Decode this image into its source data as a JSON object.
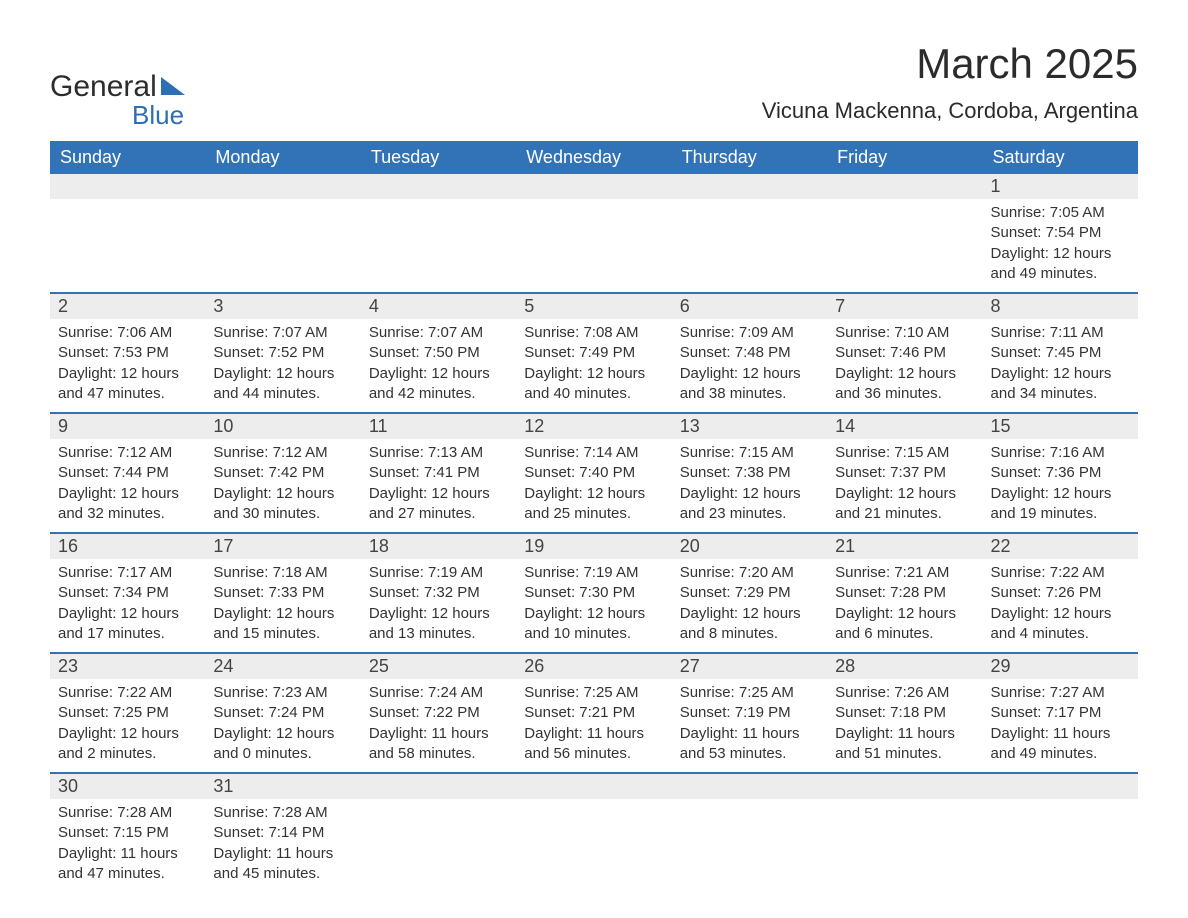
{
  "logo": {
    "text1": "General",
    "text2": "Blue",
    "color_text1": "#2c2c2c",
    "color_text2": "#2e6fb4"
  },
  "title": "March 2025",
  "subtitle": "Vicuna Mackenna, Cordoba, Argentina",
  "colors": {
    "header_bg": "#3273b8",
    "header_text": "#ffffff",
    "daynum_bg": "#ededed",
    "row_separator": "#3273b8",
    "body_text": "#333333",
    "background": "#ffffff"
  },
  "typography": {
    "title_fontsize": 42,
    "subtitle_fontsize": 22,
    "header_fontsize": 18,
    "daynum_fontsize": 18,
    "body_fontsize": 15
  },
  "calendar": {
    "type": "table",
    "columns": [
      "Sunday",
      "Monday",
      "Tuesday",
      "Wednesday",
      "Thursday",
      "Friday",
      "Saturday"
    ],
    "first_day_column_index": 6,
    "days": [
      {
        "n": 1,
        "sunrise": "7:05 AM",
        "sunset": "7:54 PM",
        "daylight": "12 hours and 49 minutes."
      },
      {
        "n": 2,
        "sunrise": "7:06 AM",
        "sunset": "7:53 PM",
        "daylight": "12 hours and 47 minutes."
      },
      {
        "n": 3,
        "sunrise": "7:07 AM",
        "sunset": "7:52 PM",
        "daylight": "12 hours and 44 minutes."
      },
      {
        "n": 4,
        "sunrise": "7:07 AM",
        "sunset": "7:50 PM",
        "daylight": "12 hours and 42 minutes."
      },
      {
        "n": 5,
        "sunrise": "7:08 AM",
        "sunset": "7:49 PM",
        "daylight": "12 hours and 40 minutes."
      },
      {
        "n": 6,
        "sunrise": "7:09 AM",
        "sunset": "7:48 PM",
        "daylight": "12 hours and 38 minutes."
      },
      {
        "n": 7,
        "sunrise": "7:10 AM",
        "sunset": "7:46 PM",
        "daylight": "12 hours and 36 minutes."
      },
      {
        "n": 8,
        "sunrise": "7:11 AM",
        "sunset": "7:45 PM",
        "daylight": "12 hours and 34 minutes."
      },
      {
        "n": 9,
        "sunrise": "7:12 AM",
        "sunset": "7:44 PM",
        "daylight": "12 hours and 32 minutes."
      },
      {
        "n": 10,
        "sunrise": "7:12 AM",
        "sunset": "7:42 PM",
        "daylight": "12 hours and 30 minutes."
      },
      {
        "n": 11,
        "sunrise": "7:13 AM",
        "sunset": "7:41 PM",
        "daylight": "12 hours and 27 minutes."
      },
      {
        "n": 12,
        "sunrise": "7:14 AM",
        "sunset": "7:40 PM",
        "daylight": "12 hours and 25 minutes."
      },
      {
        "n": 13,
        "sunrise": "7:15 AM",
        "sunset": "7:38 PM",
        "daylight": "12 hours and 23 minutes."
      },
      {
        "n": 14,
        "sunrise": "7:15 AM",
        "sunset": "7:37 PM",
        "daylight": "12 hours and 21 minutes."
      },
      {
        "n": 15,
        "sunrise": "7:16 AM",
        "sunset": "7:36 PM",
        "daylight": "12 hours and 19 minutes."
      },
      {
        "n": 16,
        "sunrise": "7:17 AM",
        "sunset": "7:34 PM",
        "daylight": "12 hours and 17 minutes."
      },
      {
        "n": 17,
        "sunrise": "7:18 AM",
        "sunset": "7:33 PM",
        "daylight": "12 hours and 15 minutes."
      },
      {
        "n": 18,
        "sunrise": "7:19 AM",
        "sunset": "7:32 PM",
        "daylight": "12 hours and 13 minutes."
      },
      {
        "n": 19,
        "sunrise": "7:19 AM",
        "sunset": "7:30 PM",
        "daylight": "12 hours and 10 minutes."
      },
      {
        "n": 20,
        "sunrise": "7:20 AM",
        "sunset": "7:29 PM",
        "daylight": "12 hours and 8 minutes."
      },
      {
        "n": 21,
        "sunrise": "7:21 AM",
        "sunset": "7:28 PM",
        "daylight": "12 hours and 6 minutes."
      },
      {
        "n": 22,
        "sunrise": "7:22 AM",
        "sunset": "7:26 PM",
        "daylight": "12 hours and 4 minutes."
      },
      {
        "n": 23,
        "sunrise": "7:22 AM",
        "sunset": "7:25 PM",
        "daylight": "12 hours and 2 minutes."
      },
      {
        "n": 24,
        "sunrise": "7:23 AM",
        "sunset": "7:24 PM",
        "daylight": "12 hours and 0 minutes."
      },
      {
        "n": 25,
        "sunrise": "7:24 AM",
        "sunset": "7:22 PM",
        "daylight": "11 hours and 58 minutes."
      },
      {
        "n": 26,
        "sunrise": "7:25 AM",
        "sunset": "7:21 PM",
        "daylight": "11 hours and 56 minutes."
      },
      {
        "n": 27,
        "sunrise": "7:25 AM",
        "sunset": "7:19 PM",
        "daylight": "11 hours and 53 minutes."
      },
      {
        "n": 28,
        "sunrise": "7:26 AM",
        "sunset": "7:18 PM",
        "daylight": "11 hours and 51 minutes."
      },
      {
        "n": 29,
        "sunrise": "7:27 AM",
        "sunset": "7:17 PM",
        "daylight": "11 hours and 49 minutes."
      },
      {
        "n": 30,
        "sunrise": "7:28 AM",
        "sunset": "7:15 PM",
        "daylight": "11 hours and 47 minutes."
      },
      {
        "n": 31,
        "sunrise": "7:28 AM",
        "sunset": "7:14 PM",
        "daylight": "11 hours and 45 minutes."
      }
    ],
    "labels": {
      "sunrise": "Sunrise:",
      "sunset": "Sunset:",
      "daylight": "Daylight:"
    }
  }
}
